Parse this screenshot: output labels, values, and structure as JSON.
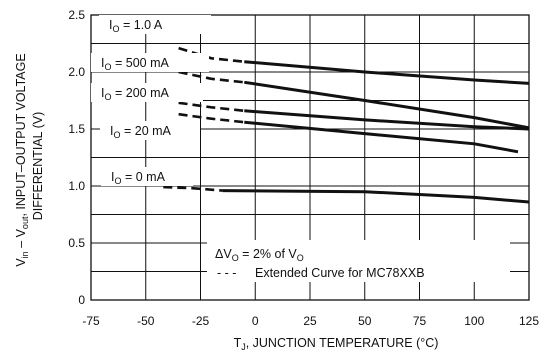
{
  "chart_data": {
    "type": "line",
    "xlabel": "T",
    "xlabel_sub": "J",
    "xlabel_rest": ", JUNCTION TEMPERATURE (°C)",
    "ylabel_line1_pre": "V",
    "ylabel_line1_sub1": "in",
    "ylabel_line1_mid": " – V",
    "ylabel_line1_sub2": "out",
    "ylabel_line1_post": ", INPUT–OUTPUT VOLTAGE",
    "ylabel_line2": "DIFFERENTIAL (V)",
    "xlim": [
      -75,
      125
    ],
    "ylim": [
      0,
      2.5
    ],
    "xticks": [
      "-75",
      "-50",
      "-25",
      "0",
      "25",
      "50",
      "75",
      "100",
      "125"
    ],
    "yticks": [
      "0",
      "0.5",
      "1.0",
      "1.5",
      "2.0",
      "2.5"
    ],
    "grid": true,
    "series": [
      {
        "name": "IO = 1.0 A",
        "label_pre": "I",
        "label_sub": "O",
        "label_post": " = 1.0 A",
        "dashed": [
          [
            -35,
            2.21
          ],
          [
            -20,
            2.12
          ],
          [
            -5,
            2.09
          ]
        ],
        "solid": [
          [
            -5,
            2.09
          ],
          [
            50,
            2.0
          ],
          [
            100,
            1.93
          ],
          [
            125,
            1.9
          ]
        ]
      },
      {
        "name": "IO = 500 mA",
        "label_pre": "I",
        "label_sub": "O",
        "label_post": " = 500 mA",
        "dashed": [
          [
            -35,
            2.0
          ],
          [
            -20,
            1.94
          ],
          [
            -5,
            1.91
          ]
        ],
        "solid": [
          [
            -5,
            1.91
          ],
          [
            50,
            1.75
          ],
          [
            100,
            1.6
          ],
          [
            125,
            1.51
          ]
        ]
      },
      {
        "name": "IO = 200 mA",
        "label_pre": "I",
        "label_sub": "O",
        "label_post": " = 200 mA",
        "dashed": [
          [
            -35,
            1.73
          ],
          [
            -20,
            1.69
          ],
          [
            -5,
            1.66
          ]
        ],
        "solid": [
          [
            -5,
            1.66
          ],
          [
            50,
            1.58
          ],
          [
            100,
            1.52
          ],
          [
            125,
            1.5
          ]
        ]
      },
      {
        "name": "IO = 20 mA",
        "label_pre": "I",
        "label_sub": "O",
        "label_post": " = 20 mA",
        "dashed": [
          [
            -35,
            1.63
          ],
          [
            -20,
            1.59
          ],
          [
            -5,
            1.56
          ]
        ],
        "solid": [
          [
            -5,
            1.56
          ],
          [
            50,
            1.46
          ],
          [
            100,
            1.37
          ],
          [
            120,
            1.3
          ]
        ]
      },
      {
        "name": "IO = 0 mA",
        "label_pre": "I",
        "label_sub": "O",
        "label_post": " = 0 mA",
        "dashed": [
          [
            -42,
            0.99
          ],
          [
            -28,
            0.98
          ],
          [
            -15,
            0.96
          ]
        ],
        "solid": [
          [
            -15,
            0.96
          ],
          [
            50,
            0.95
          ],
          [
            100,
            0.9
          ],
          [
            125,
            0.86
          ]
        ]
      }
    ],
    "annotation": {
      "delta_pre": "ΔV",
      "delta_sub1": "O",
      "delta_mid": " = 2% of V",
      "delta_sub2": "O",
      "legend_dash": "- - -",
      "legend_text": "Extended Curve for MC78XXB"
    }
  }
}
